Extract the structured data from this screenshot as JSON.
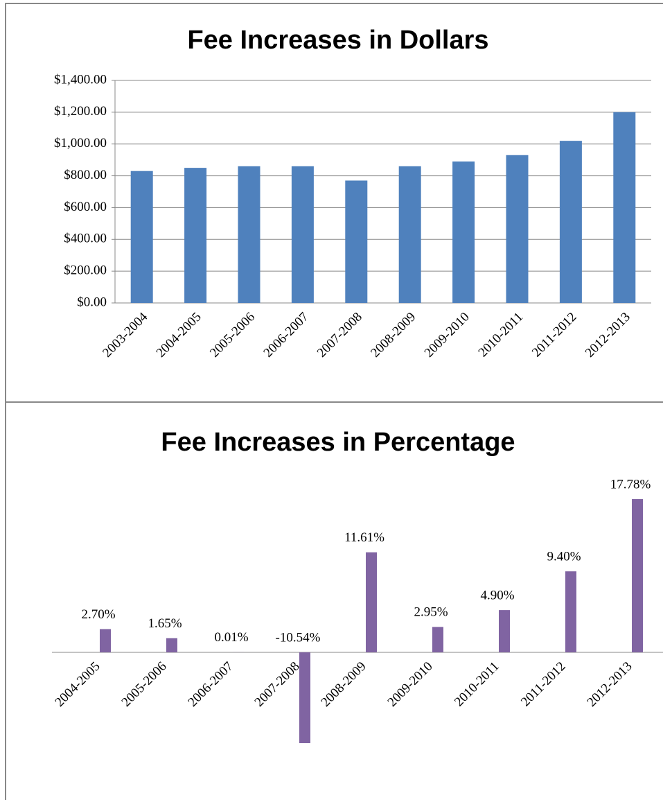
{
  "chart_data": [
    {
      "type": "bar",
      "title": "Fee Increases in Dollars",
      "categories": [
        "2003-2004",
        "2004-2005",
        "2005-2006",
        "2006-2007",
        "2007-2008",
        "2008-2009",
        "2009-2010",
        "2010-2011",
        "2011-2012",
        "2012-2013"
      ],
      "values": [
        830,
        850,
        860,
        860,
        770,
        860,
        890,
        930,
        1020,
        1200
      ],
      "color": "#4f81bd",
      "grid": true,
      "ylim": [
        0,
        1400
      ],
      "yticks": [
        {
          "value": 0,
          "label": "$0.00"
        },
        {
          "value": 200,
          "label": "$200.00"
        },
        {
          "value": 400,
          "label": "$400.00"
        },
        {
          "value": 600,
          "label": "$600.00"
        },
        {
          "value": 800,
          "label": "$800.00"
        },
        {
          "value": 1000,
          "label": "$1,000.00"
        },
        {
          "value": 1200,
          "label": "$1,200.00"
        },
        {
          "value": 1400,
          "label": "$1,400.00"
        }
      ]
    },
    {
      "type": "bar",
      "title": "Fee Increases in Percentage",
      "categories": [
        "2004-2005",
        "2005-2006",
        "2006-2007",
        "2007-2008",
        "2008-2009",
        "2009-2010",
        "2010-2011",
        "2011-2012",
        "2012-2013"
      ],
      "values": [
        2.7,
        1.65,
        0.01,
        -10.54,
        11.61,
        2.95,
        4.9,
        9.4,
        17.78
      ],
      "value_labels": [
        "2.70%",
        "1.65%",
        "0.01%",
        "-10.54%",
        "11.61%",
        "2.95%",
        "4.90%",
        "9.40%",
        "17.78%"
      ],
      "color": "#8064a2"
    }
  ]
}
